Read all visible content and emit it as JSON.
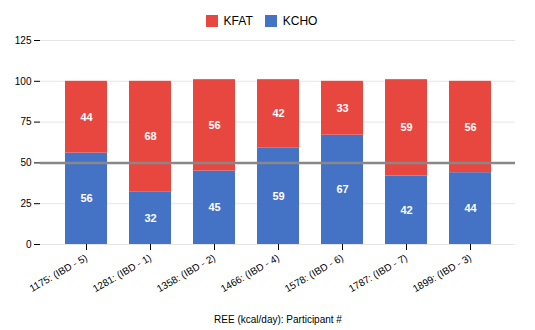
{
  "chart_data": {
    "type": "bar",
    "stacked": true,
    "xlabel": "REE (kcal/day): Participant #",
    "categories": [
      "1175: (IBD - 5)",
      "1281: (IBD - 1)",
      "1358: (IBD - 2)",
      "1466: (IBD - 4)",
      "1578: (IBD - 6)",
      "1787: (IBD - 7)",
      "1899: (IBD - 3)"
    ],
    "series": [
      {
        "name": "KCHO",
        "color": "#4472C4",
        "values": [
          56,
          32,
          45,
          59,
          67,
          42,
          44
        ]
      },
      {
        "name": "KFAT",
        "color": "#E8473F",
        "values": [
          44,
          68,
          56,
          42,
          33,
          59,
          56
        ]
      }
    ],
    "reference_line": {
      "value": 50,
      "color": "#888888"
    },
    "ylim": [
      0,
      125
    ],
    "yticks": [
      0,
      25,
      50,
      75,
      100,
      125
    ],
    "grid": true,
    "legend": "top",
    "data_labels": true
  }
}
